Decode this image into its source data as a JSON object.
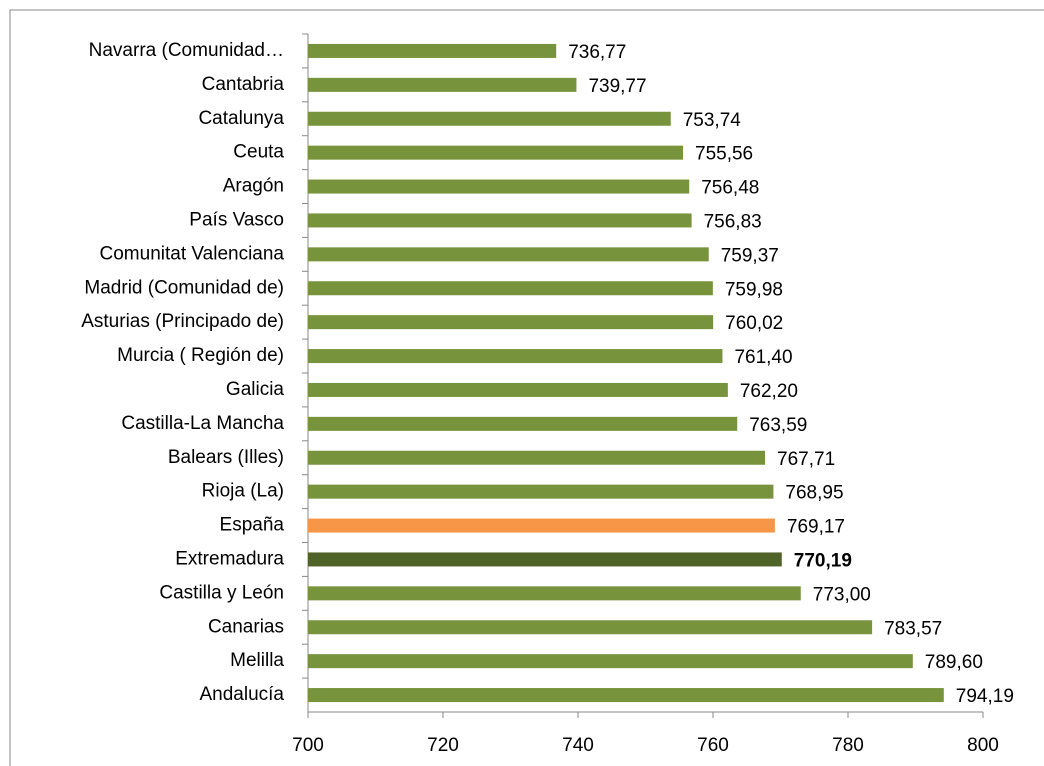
{
  "chart_data": {
    "type": "bar",
    "orientation": "horizontal",
    "categories": [
      "Navarra (Comunidad…",
      "Cantabria",
      "Catalunya",
      "Ceuta",
      "Aragón",
      "País Vasco",
      "Comunitat Valenciana",
      "Madrid (Comunidad de)",
      "Asturias (Principado de)",
      "Murcia ( Región de)",
      "Galicia",
      "Castilla-La Mancha",
      "Balears (Illes)",
      "Rioja (La)",
      "España",
      "Extremadura",
      "Castilla y León",
      "Canarias",
      "Melilla",
      "Andalucía"
    ],
    "values": [
      736.77,
      739.77,
      753.74,
      755.56,
      756.48,
      756.83,
      759.37,
      759.98,
      760.02,
      761.4,
      762.2,
      763.59,
      767.71,
      768.95,
      769.17,
      770.19,
      773.0,
      783.57,
      789.6,
      794.19
    ],
    "value_labels": [
      "736,77",
      "739,77",
      "753,74",
      "755,56",
      "756,48",
      "756,83",
      "759,37",
      "759,98",
      "760,02",
      "761,40",
      "762,20",
      "763,59",
      "767,71",
      "768,95",
      "769,17",
      "770,19",
      "773,00",
      "783,57",
      "789,60",
      "794,19"
    ],
    "colors": [
      "#77933c",
      "#77933c",
      "#77933c",
      "#77933c",
      "#77933c",
      "#77933c",
      "#77933c",
      "#77933c",
      "#77933c",
      "#77933c",
      "#77933c",
      "#77933c",
      "#77933c",
      "#77933c",
      "#f79646",
      "#4f6228",
      "#77933c",
      "#77933c",
      "#77933c",
      "#77933c"
    ],
    "label_bold": [
      false,
      false,
      false,
      false,
      false,
      false,
      false,
      false,
      false,
      false,
      false,
      false,
      false,
      false,
      false,
      true,
      false,
      false,
      false,
      false
    ],
    "xlim": [
      700,
      800
    ],
    "xticks": [
      700,
      720,
      740,
      760,
      780,
      800
    ],
    "grid": false
  }
}
